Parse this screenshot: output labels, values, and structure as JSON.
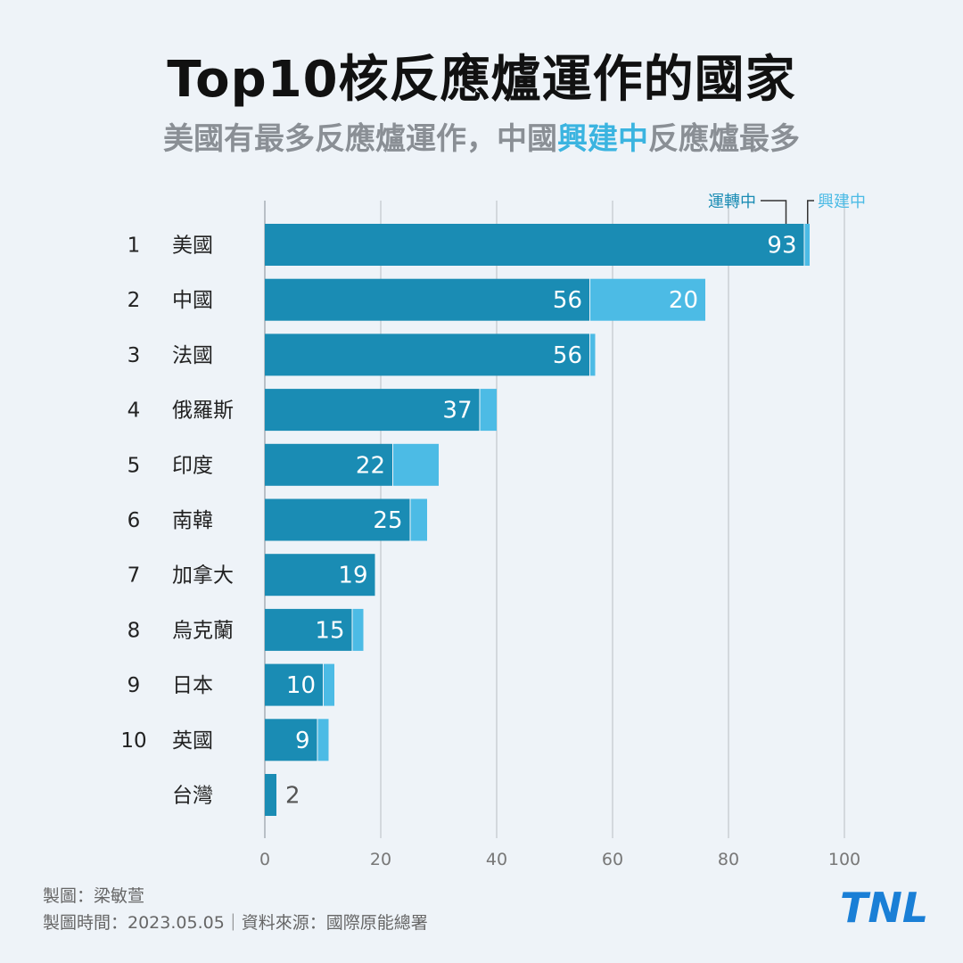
{
  "header": {
    "title": "Top10核反應爐運作的國家",
    "subtitle_pre": "美國有最多反應爐運作，中國",
    "subtitle_highlight": "興建中",
    "subtitle_post": "反應爐最多"
  },
  "chart_data": {
    "type": "bar",
    "orientation": "horizontal",
    "stacked": true,
    "ranks": [
      "1",
      "2",
      "3",
      "4",
      "5",
      "6",
      "7",
      "8",
      "9",
      "10",
      ""
    ],
    "categories": [
      "美國",
      "中國",
      "法國",
      "俄羅斯",
      "印度",
      "南韓",
      "加拿大",
      "烏克蘭",
      "日本",
      "英國",
      "台灣"
    ],
    "series": [
      {
        "name": "運轉中",
        "color": "#1a8cb4",
        "values": [
          93,
          56,
          56,
          37,
          22,
          25,
          19,
          15,
          10,
          9,
          2
        ]
      },
      {
        "name": "興建中",
        "color": "#4cbbe5",
        "values": [
          1,
          20,
          1,
          3,
          8,
          3,
          0,
          2,
          2,
          2,
          0
        ]
      }
    ],
    "labels": {
      "operating": [
        "93",
        "56",
        "56",
        "37",
        "22",
        "25",
        "19",
        "15",
        "10",
        "9",
        "2"
      ],
      "construction": [
        "",
        "20",
        "",
        "",
        "",
        "",
        "",
        "",
        "",
        "",
        ""
      ]
    },
    "xlim": [
      0,
      100
    ],
    "xticks": [
      "0",
      "20",
      "40",
      "60",
      "80",
      "100"
    ],
    "grid": true,
    "legend": [
      "運轉中",
      "興建中"
    ]
  },
  "footer": {
    "credit": "製圖：梁敏萱",
    "date_source": "製圖時間：2023.05.05｜資料來源：國際原能總署"
  },
  "logo": {
    "text": "TNL",
    "color": "#1a7fd6"
  }
}
